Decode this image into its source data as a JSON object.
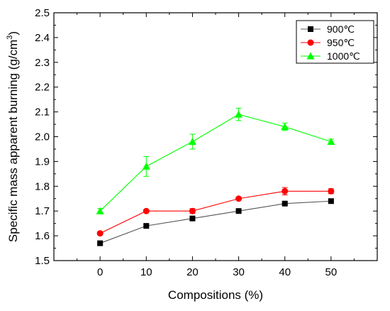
{
  "chart_data": {
    "type": "line",
    "title": "",
    "xlabel": "Compositions (%)",
    "ylabel": "Specific mass apparent burning (g/cm",
    "ylabel_superscript": "3",
    "ylabel_close": ")",
    "x": [
      0,
      10,
      20,
      30,
      40,
      50
    ],
    "x_ticks": [
      "0",
      "10",
      "20",
      "30",
      "40",
      "50"
    ],
    "xlim": [
      -10,
      60
    ],
    "ylim": [
      1.5,
      2.5
    ],
    "y_ticks": [
      "1.5",
      "1.6",
      "1.7",
      "1.8",
      "1.9",
      "2.0",
      "2.1",
      "2.2",
      "2.3",
      "2.4",
      "2.5"
    ],
    "grid": false,
    "legend_position": "top-right",
    "series": [
      {
        "name": "900℃",
        "color": "#000000",
        "line_color": "#555555",
        "marker": "square",
        "values": [
          1.57,
          1.64,
          1.67,
          1.7,
          1.73,
          1.74
        ],
        "errors": [
          0.005,
          0.005,
          0.005,
          0.005,
          0.005,
          0.005
        ]
      },
      {
        "name": "950℃",
        "color": "#ff0000",
        "line_color": "#ff0000",
        "marker": "circle",
        "values": [
          1.61,
          1.7,
          1.7,
          1.75,
          1.78,
          1.78
        ],
        "errors": [
          0.005,
          0.005,
          0.01,
          0.005,
          0.015,
          0.01
        ]
      },
      {
        "name": "1000℃",
        "color": "#00ff00",
        "line_color": "#00ff00",
        "marker": "triangle",
        "values": [
          1.7,
          1.88,
          1.98,
          2.09,
          2.04,
          1.98
        ],
        "errors": [
          0.01,
          0.04,
          0.03,
          0.025,
          0.015,
          0.01
        ]
      }
    ]
  }
}
